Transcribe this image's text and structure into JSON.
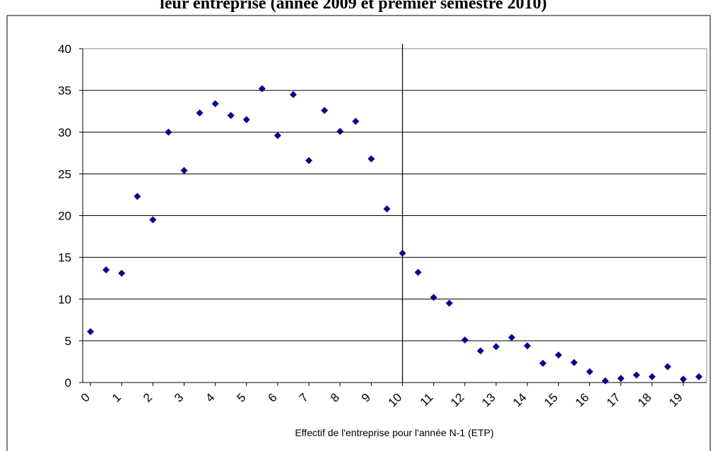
{
  "chart_data": {
    "type": "scatter",
    "title": "leur entreprise (année 2009 et premier semestre 2010)",
    "x_label": "Effectif de l'entreprise pour l'année N-1 (ETP)",
    "x": [
      0,
      0.5,
      1,
      1.5,
      2,
      2.5,
      3,
      3.5,
      4,
      4.5,
      5,
      5.5,
      6,
      6.5,
      7,
      7.5,
      8,
      8.5,
      9,
      9.5,
      10,
      10.5,
      11,
      11.5,
      12,
      12.5,
      13,
      13.5,
      14,
      14.5,
      15,
      15.5,
      16,
      16.5,
      17,
      17.5,
      18,
      18.5,
      19,
      19.5
    ],
    "values": [
      6.1,
      13.5,
      13.1,
      22.3,
      19.5,
      30.0,
      25.4,
      32.3,
      33.4,
      32.0,
      31.5,
      35.2,
      29.6,
      34.5,
      26.6,
      32.6,
      30.1,
      31.3,
      26.8,
      20.8,
      15.5,
      13.2,
      10.2,
      9.5,
      5.1,
      3.8,
      4.3,
      5.4,
      4.4,
      2.3,
      3.3,
      2.4,
      1.3,
      0.2,
      0.5,
      0.9,
      0.7,
      1.9,
      0.4,
      0.7
    ],
    "color": "#00008b",
    "xlim": [
      -0.25,
      19.75
    ],
    "xticks": [
      0,
      1,
      2,
      3,
      4,
      5,
      6,
      7,
      8,
      9,
      10,
      11,
      12,
      13,
      14,
      15,
      16,
      17,
      18,
      19
    ],
    "ylim": [
      0,
      40
    ],
    "yticks": [
      0,
      5,
      10,
      15,
      20,
      25,
      30,
      35,
      40
    ],
    "grid": true,
    "vline_x": 10
  }
}
